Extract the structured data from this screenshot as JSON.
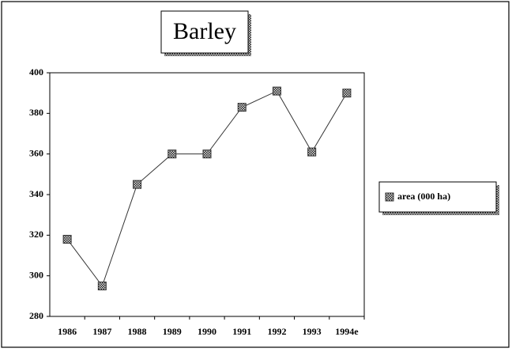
{
  "chart_data": {
    "type": "line",
    "title": "Barley",
    "categories": [
      "1986",
      "1987",
      "1988",
      "1989",
      "1990",
      "1991",
      "1992",
      "1993",
      "1994e"
    ],
    "series": [
      {
        "name": "area (000 ha)",
        "color": "#333333",
        "values": [
          318,
          295,
          345,
          360,
          360,
          383,
          391,
          361,
          390
        ]
      }
    ],
    "ylim": [
      280,
      400
    ],
    "yticks": [
      280,
      300,
      320,
      340,
      360,
      380,
      400
    ],
    "grid": false,
    "legend": "right"
  }
}
